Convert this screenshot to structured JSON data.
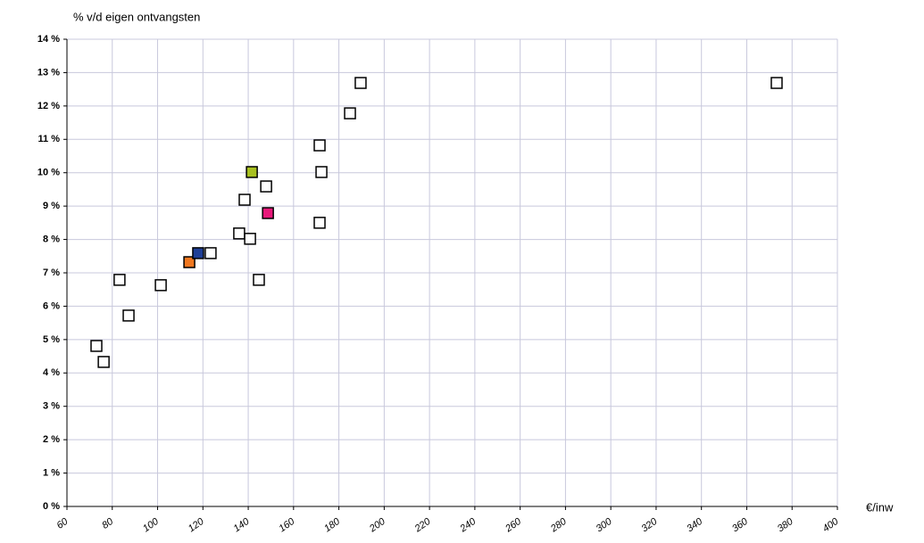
{
  "chart_data": {
    "type": "scatter",
    "y_label": "% v/d eigen ontvangsten",
    "x_label": "€/inw",
    "x": [
      73,
      76.2,
      83.2,
      87.2,
      101.4,
      114,
      117.9,
      123.4,
      136,
      138.4,
      140.8,
      141.6,
      144.7,
      147.9,
      148.7,
      171.5,
      171.5,
      172.3,
      184.9,
      189.6,
      373.2
    ],
    "values": [
      4.81,
      4.33,
      6.79,
      5.72,
      6.63,
      7.32,
      7.59,
      7.59,
      8.18,
      9.19,
      8.02,
      10.02,
      6.79,
      9.59,
      8.79,
      10.82,
      8.5,
      10.02,
      11.78,
      12.69,
      12.69
    ],
    "colors": [
      "#ffffff",
      "#ffffff",
      "#ffffff",
      "#ffffff",
      "#ffffff",
      "#f07820",
      "#1f3f96",
      "#ffffff",
      "#ffffff",
      "#ffffff",
      "#ffffff",
      "#a8c020",
      "#ffffff",
      "#ffffff",
      "#e8187a",
      "#ffffff",
      "#ffffff",
      "#ffffff",
      "#ffffff",
      "#ffffff",
      "#ffffff"
    ],
    "xlim": [
      60,
      400
    ],
    "xticks": [
      60,
      80,
      100,
      120,
      140,
      160,
      180,
      200,
      220,
      240,
      260,
      280,
      300,
      320,
      340,
      360,
      380,
      400
    ],
    "ylim": [
      0,
      14
    ],
    "yticks": [
      {
        "value": 0,
        "label": "0 %"
      },
      {
        "value": 1,
        "label": "1 %"
      },
      {
        "value": 2,
        "label": "2 %"
      },
      {
        "value": 3,
        "label": "3 %"
      },
      {
        "value": 4,
        "label": "4 %"
      },
      {
        "value": 5,
        "label": "5 %"
      },
      {
        "value": 6,
        "label": "6 %"
      },
      {
        "value": 7,
        "label": "7 %"
      },
      {
        "value": 8,
        "label": "8 %"
      },
      {
        "value": 9,
        "label": "9 %"
      },
      {
        "value": 10,
        "label": "10 %"
      },
      {
        "value": 11,
        "label": "11 %"
      },
      {
        "value": 12,
        "label": "12 %"
      },
      {
        "value": 13,
        "label": "13 %"
      },
      {
        "value": 14,
        "label": "14 %"
      }
    ],
    "grid": true
  }
}
